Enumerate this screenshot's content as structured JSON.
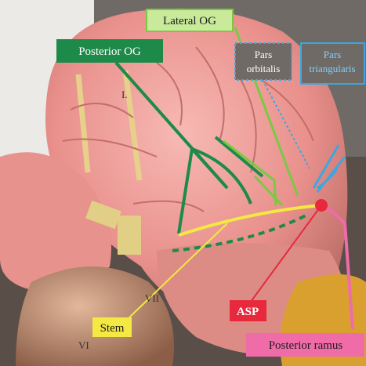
{
  "labels": {
    "lateral_og": "Lateral OG",
    "posterior_og": "Posterior OG",
    "pars_orbitalis": [
      "Pars",
      "orbitalis"
    ],
    "pars_triangularis": [
      "Pars",
      "triangularis"
    ],
    "stem": "Stem",
    "asp": "ASP",
    "posterior_ramus": "Posterior ramus"
  },
  "model_marks": [
    "I.",
    "VI",
    "VII"
  ]
}
